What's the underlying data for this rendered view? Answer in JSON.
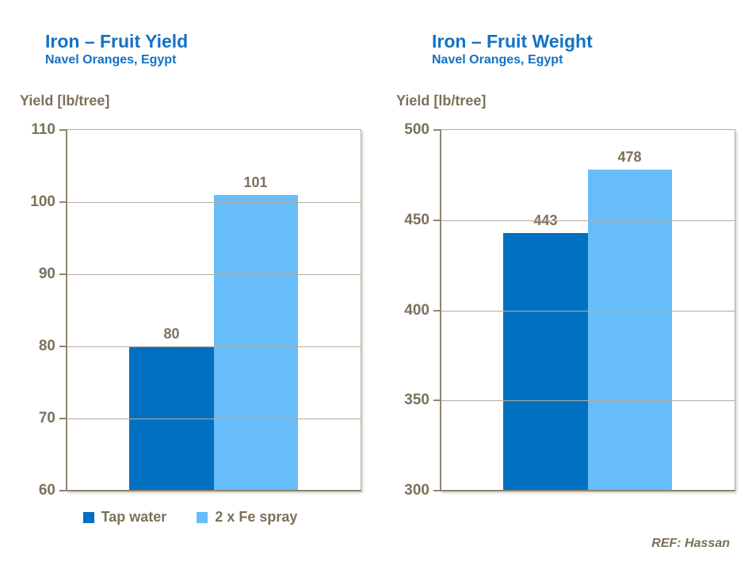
{
  "colors": {
    "title_blue": "#1471C5",
    "text_taupe": "#7C715A",
    "gridline": "#B5AB9D",
    "axis": "#8F8574",
    "bar_dark_blue": "#0070C0",
    "bar_light_blue": "#66BDFA"
  },
  "chart_data": [
    {
      "type": "bar",
      "title": "Iron – Fruit Yield",
      "subtitle": "Navel Oranges, Egypt",
      "axis_title": "Yield [lb/tree]",
      "categories": [
        "Tap water",
        "2 x Fe spray"
      ],
      "values": [
        80,
        101
      ],
      "value_labels": [
        "80",
        "101"
      ],
      "bar_colors": [
        "#0070C0",
        "#66BDFA"
      ],
      "ylim": [
        60,
        110
      ],
      "yticks": [
        110,
        100,
        90,
        80,
        70,
        60
      ],
      "grid": true,
      "legend_visible": true,
      "legend": [
        "Tap water",
        "2 x Fe spray"
      ],
      "legend_position": "bottom"
    },
    {
      "type": "bar",
      "title": "Iron – Fruit Weight",
      "subtitle": "Navel Oranges, Egypt",
      "axis_title": "Yield [lb/tree]",
      "categories": [
        "Tap water",
        "2 x Fe spray"
      ],
      "values": [
        443,
        478
      ],
      "value_labels": [
        "443",
        "478"
      ],
      "bar_colors": [
        "#0070C0",
        "#66BDFA"
      ],
      "ylim": [
        300,
        500
      ],
      "yticks": [
        500,
        450,
        400,
        350,
        300
      ],
      "grid": true,
      "legend_visible": false,
      "legend": [],
      "legend_position": "none"
    }
  ],
  "footer": {
    "ref_label": "REF: Hassan"
  }
}
